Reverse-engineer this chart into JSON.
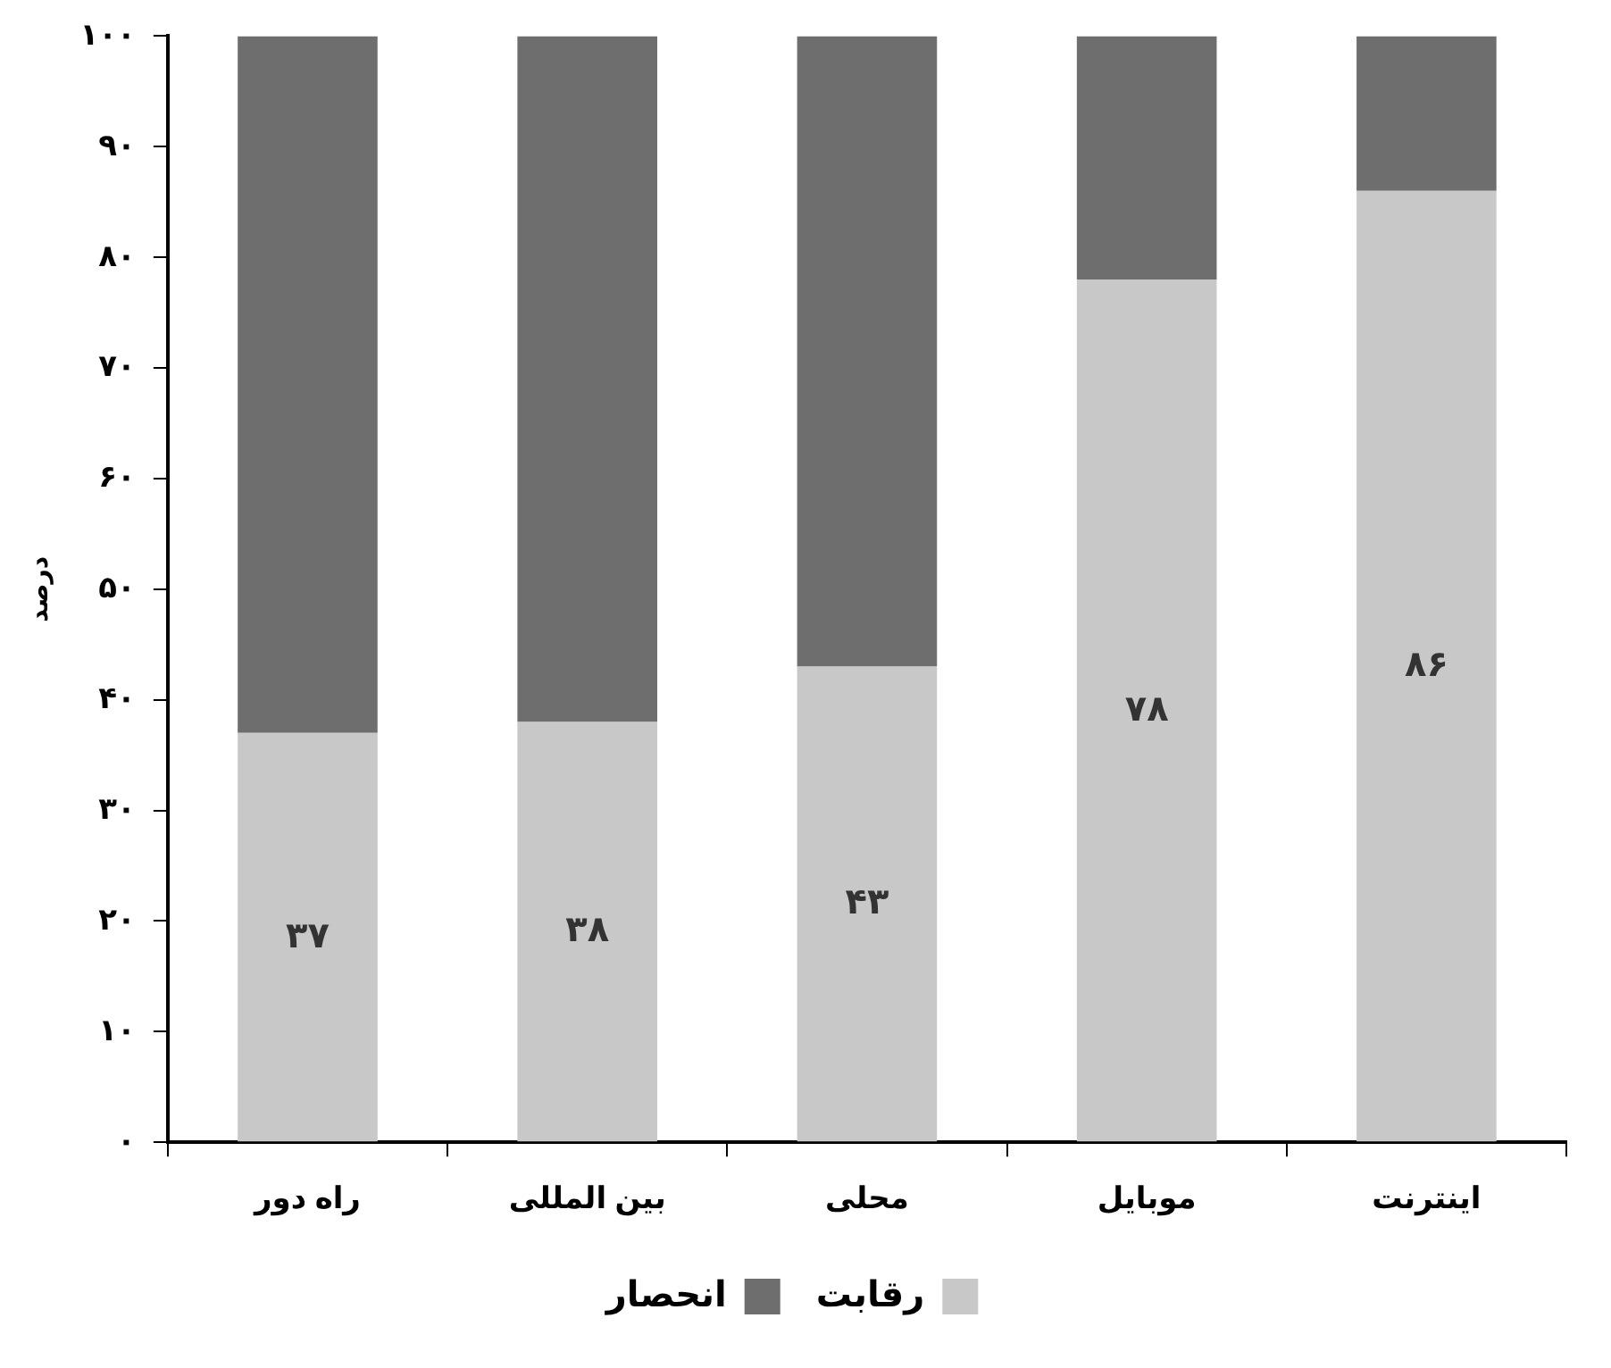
{
  "chart_data": {
    "type": "bar",
    "stacked": true,
    "ylabel": "درصد",
    "categories": [
      "راه دور",
      "بین المللی",
      "محلی",
      "موبایل",
      "اینترنت"
    ],
    "series": [
      {
        "name": "رقابت",
        "color": "#c8c8c8",
        "values": [
          37,
          38,
          43,
          78,
          86
        ],
        "value_labels": [
          "۳۷",
          "۳۸",
          "۴۳",
          "۷۸",
          "۸۶"
        ]
      },
      {
        "name": "انحصار",
        "color": "#6e6e6e",
        "values": [
          63,
          62,
          57,
          22,
          14
        ]
      }
    ],
    "ylim": [
      0,
      100
    ],
    "yticks": [
      {
        "value": 0,
        "label": "۰"
      },
      {
        "value": 10,
        "label": "۱۰"
      },
      {
        "value": 20,
        "label": "۲۰"
      },
      {
        "value": 30,
        "label": "۳۰"
      },
      {
        "value": 40,
        "label": "۴۰"
      },
      {
        "value": 50,
        "label": "۵۰"
      },
      {
        "value": 60,
        "label": "۶۰"
      },
      {
        "value": 70,
        "label": "۷۰"
      },
      {
        "value": 80,
        "label": "۸۰"
      },
      {
        "value": 90,
        "label": "۹۰"
      },
      {
        "value": 100,
        "label": "۱۰۰"
      }
    ],
    "grid": false,
    "legend": "bottom"
  }
}
